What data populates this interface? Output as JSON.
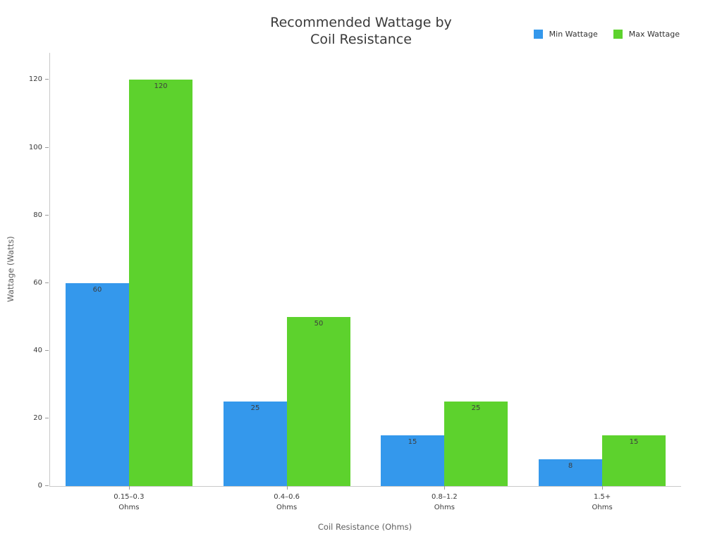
{
  "title": {
    "text": "Recommended Wattage by\nCoil Resistance"
  },
  "chart_data": {
    "type": "bar",
    "title": "Recommended Wattage by Coil Resistance",
    "categories": [
      "0.15–0.3",
      "0.4–0.6",
      "0.8–1.2",
      "1.5+"
    ],
    "category_unit": "Ohms",
    "series": [
      {
        "name": "Min Wattage",
        "color": "#3498ec",
        "values": [
          60,
          25,
          15,
          8
        ]
      },
      {
        "name": "Max Wattage",
        "color": "#5dd22d",
        "values": [
          120,
          50,
          25,
          15
        ]
      }
    ],
    "xlabel": "Coil Resistance (Ohms)",
    "ylabel": "Wattage (Watts)",
    "ylim": [
      0,
      128
    ],
    "yticks": [
      0,
      20,
      40,
      60,
      80,
      100,
      120
    ],
    "grid": false,
    "legend_position": "top-right",
    "bar_value_labels": true
  }
}
